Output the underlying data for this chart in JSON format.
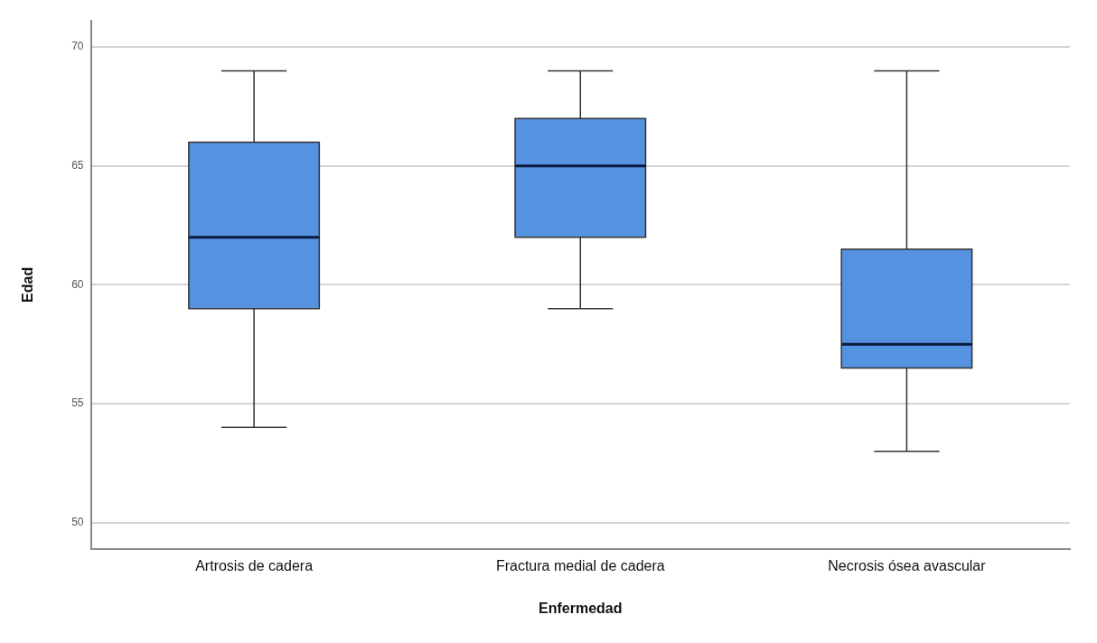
{
  "chart_data": {
    "type": "box",
    "xlabel": "Enfermedad",
    "ylabel": "Edad",
    "categories": [
      "Artrosis de cadera",
      "Fractura medial de cadera",
      "Necrosis ósea avascular"
    ],
    "boxes": [
      {
        "low": 54,
        "q1": 59,
        "median": 62,
        "q3": 66,
        "high": 69
      },
      {
        "low": 59,
        "q1": 62,
        "median": 65,
        "q3": 67,
        "high": 69
      },
      {
        "low": 53,
        "q1": 56.5,
        "median": 57.5,
        "q3": 61.5,
        "high": 69
      }
    ],
    "color": "#5592e0",
    "ylim": [
      48.9,
      71.1
    ],
    "yticks": [
      50,
      55,
      60,
      65,
      70
    ],
    "grid": "y"
  }
}
